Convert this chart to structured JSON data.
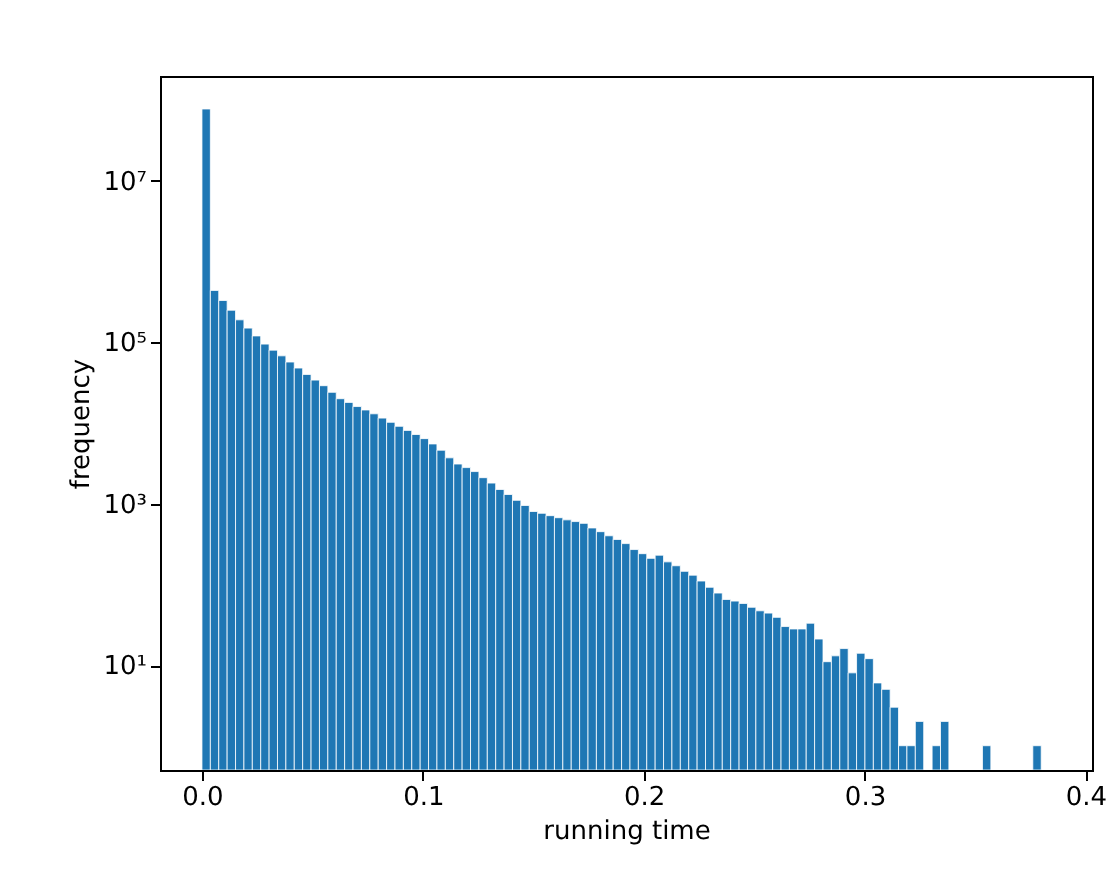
{
  "chart_data": {
    "type": "histogram",
    "xlabel": "running time",
    "ylabel": "frequency",
    "color": "#1f77b4",
    "log": "y",
    "grid": false,
    "xlim": [
      -0.019,
      0.403
    ],
    "ylim": [
      0.5,
      200000000
    ],
    "xticks": [
      {
        "value": 0,
        "label": "0.0"
      },
      0.1,
      0.2,
      0.3,
      0.4
    ],
    "yticks": [
      {
        "value": 10,
        "label": "10¹"
      },
      {
        "value": 1000,
        "label": "10³"
      },
      {
        "value": 100000,
        "label": "10⁵"
      },
      {
        "value": 10000000,
        "label": "10⁷"
      }
    ],
    "bins": [
      0,
      0.0038,
      0.0076,
      0.0114,
      0.0152,
      0.019,
      0.0228,
      0.0266,
      0.0304,
      0.0342,
      0.038,
      0.0418,
      0.0456,
      0.0494,
      0.0532,
      0.057,
      0.0608,
      0.0646,
      0.0684,
      0.0722,
      0.076,
      0.0798,
      0.0836,
      0.0874,
      0.0912,
      0.095,
      0.0988,
      0.1026,
      0.1064,
      0.1102,
      0.114,
      0.1178,
      0.1216,
      0.1254,
      0.1292,
      0.133,
      0.1368,
      0.1406,
      0.1444,
      0.1482,
      0.152,
      0.1558,
      0.1596,
      0.1634,
      0.1672,
      0.171,
      0.1748,
      0.1786,
      0.1824,
      0.1862,
      0.19,
      0.1938,
      0.1976,
      0.2014,
      0.2052,
      0.209,
      0.2128,
      0.2166,
      0.2204,
      0.2242,
      0.228,
      0.2318,
      0.2356,
      0.2394,
      0.2432,
      0.247,
      0.2508,
      0.2546,
      0.2584,
      0.2622,
      0.266,
      0.2698,
      0.2736,
      0.2774,
      0.2812,
      0.285,
      0.2888,
      0.2926,
      0.2964,
      0.3002,
      0.304,
      0.3078,
      0.3116,
      0.3154,
      0.3192,
      0.323,
      0.3268,
      0.3306,
      0.3344,
      0.3382,
      0.342,
      0.3458,
      0.3496,
      0.3534,
      0.3572,
      0.361,
      0.3648,
      0.3686,
      0.3724,
      0.3762,
      0.38
    ],
    "values": [
      78000000,
      440000,
      330000,
      250000,
      190000,
      150000,
      120000,
      95000,
      80000,
      68000,
      57000,
      48000,
      40000,
      34000,
      29000,
      24000,
      20000,
      18000,
      16000,
      14500,
      13000,
      11500,
      10200,
      9100,
      8100,
      7200,
      6400,
      5500,
      4600,
      3700,
      3100,
      2800,
      2500,
      2100,
      1800,
      1500,
      1300,
      1100,
      950,
      800,
      760,
      710,
      670,
      630,
      600,
      570,
      500,
      450,
      400,
      360,
      320,
      270,
      240,
      210,
      230,
      190,
      170,
      145,
      130,
      110,
      92,
      78,
      65,
      62,
      58,
      52,
      47,
      44,
      39,
      30,
      28,
      28,
      33,
      21,
      11,
      13,
      16,
      8,
      14,
      12,
      6,
      5,
      3,
      1,
      1,
      2,
      null,
      1,
      2,
      null,
      null,
      null,
      null,
      1,
      null,
      null,
      null,
      null,
      null,
      1
    ]
  }
}
